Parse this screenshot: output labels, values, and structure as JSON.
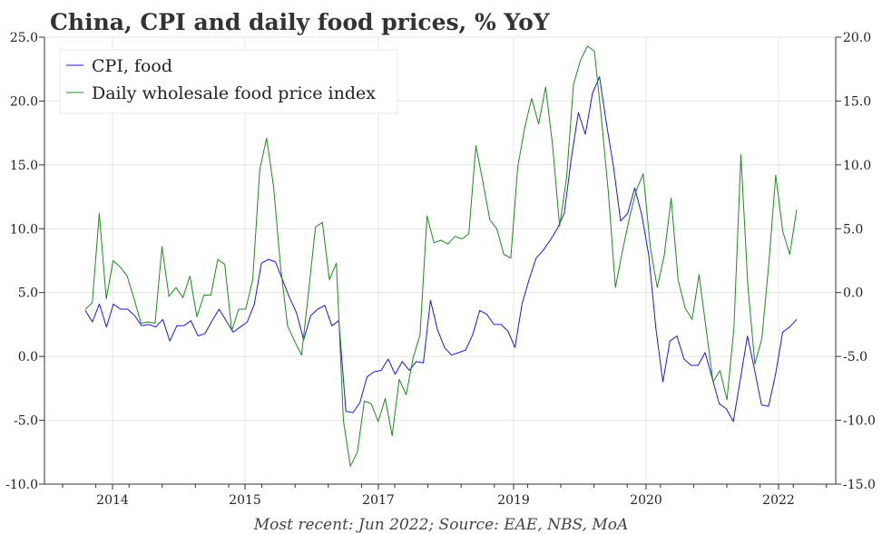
{
  "chart_data": {
    "type": "line",
    "title": "China, CPI and daily food prices, % YoY",
    "source_note": "Most recent: Jun 2022; Source: EAE, NBS, MoA",
    "x_tick_labels": [
      "2014",
      "2015",
      "2017",
      "2019",
      "2020",
      "2022"
    ],
    "left_axis": {
      "ylim": [
        -10,
        25
      ],
      "tick_values": [
        25,
        20,
        15,
        10,
        5,
        0,
        -5,
        -10
      ],
      "tick_labels": [
        "25.0",
        "20.0",
        "15.0",
        "10.0",
        "5.0",
        "0.0",
        "-5.0",
        "-10.0"
      ]
    },
    "right_axis": {
      "ylim": [
        -15,
        20
      ],
      "tick_values": [
        20,
        15,
        10,
        5,
        0,
        -5,
        -10,
        -15
      ],
      "tick_labels": [
        "20.0",
        "15.0",
        "10.0",
        "5.0",
        "0.0",
        "-5.0",
        "-10.0",
        "-15.0"
      ]
    },
    "grid": true,
    "legend_position": "top-left",
    "series": [
      {
        "name": "CPI, food",
        "axis": "left",
        "color": "#1a1adf",
        "values": [
          3.6,
          2.7,
          4.1,
          2.3,
          4.1,
          3.7,
          3.7,
          3.2,
          2.4,
          2.5,
          2.3,
          2.9,
          1.2,
          2.4,
          2.4,
          2.8,
          1.6,
          1.8,
          2.8,
          3.7,
          2.8,
          1.9,
          2.3,
          2.7,
          4.1,
          7.3,
          7.6,
          7.4,
          6.0,
          4.6,
          3.4,
          1.3,
          3.2,
          3.7,
          4.0,
          2.4,
          2.8,
          -4.3,
          -4.4,
          -3.6,
          -1.6,
          -1.2,
          -1.1,
          -0.2,
          -1.4,
          -0.4,
          -1.1,
          -0.4,
          -0.5,
          4.4,
          2.1,
          0.7,
          0.1,
          0.3,
          0.5,
          1.7,
          3.6,
          3.3,
          2.5,
          2.5,
          2.0,
          0.7,
          4.1,
          6.0,
          7.7,
          8.3,
          9.1,
          10.0,
          11.2,
          15.5,
          19.1,
          17.4,
          20.6,
          21.9,
          18.2,
          14.8,
          10.6,
          11.2,
          13.2,
          11.1,
          7.9,
          2.2,
          -2.0,
          1.2,
          1.6,
          -0.2,
          -0.7,
          -0.7,
          0.3,
          -1.7,
          -3.7,
          -4.1,
          -5.1,
          -1.8,
          1.6,
          -1.0,
          -3.8,
          -3.9,
          -1.4,
          1.9,
          2.3,
          2.9
        ]
      },
      {
        "name": "Daily wholesale food price index",
        "axis": "right",
        "color": "#1e8a1e",
        "values": [
          -1.3,
          -0.8,
          6.2,
          -0.5,
          2.5,
          2.0,
          1.3,
          -0.5,
          -2.4,
          -2.3,
          -2.4,
          3.6,
          -0.3,
          0.4,
          -0.4,
          1.3,
          -1.9,
          -0.2,
          -0.2,
          2.6,
          2.2,
          -3.0,
          -1.3,
          -1.3,
          1.0,
          9.6,
          12.1,
          8.3,
          2.0,
          -2.6,
          -3.8,
          -4.9,
          0.0,
          5.1,
          5.5,
          1.0,
          2.3,
          -10.0,
          -13.6,
          -12.5,
          -8.5,
          -8.7,
          -10.1,
          -8.3,
          -11.2,
          -6.8,
          -8.0,
          -5.1,
          -3.3,
          6.0,
          3.9,
          4.1,
          3.8,
          4.4,
          4.2,
          4.6,
          11.5,
          8.7,
          5.7,
          5.0,
          3.0,
          2.7,
          9.8,
          12.9,
          15.2,
          13.2,
          16.1,
          11.5,
          5.2,
          9.0,
          16.3,
          18.2,
          19.3,
          18.9,
          13.6,
          7.8,
          0.4,
          3.2,
          5.8,
          8.0,
          9.3,
          3.6,
          0.4,
          2.9,
          7.4,
          1.0,
          -1.2,
          -2.1,
          1.4,
          -2.8,
          -7.0,
          -6.1,
          -8.4,
          -2.8,
          10.8,
          0.5,
          -5.6,
          -3.6,
          2.3,
          9.2,
          4.8,
          3.0,
          6.5
        ]
      }
    ]
  }
}
